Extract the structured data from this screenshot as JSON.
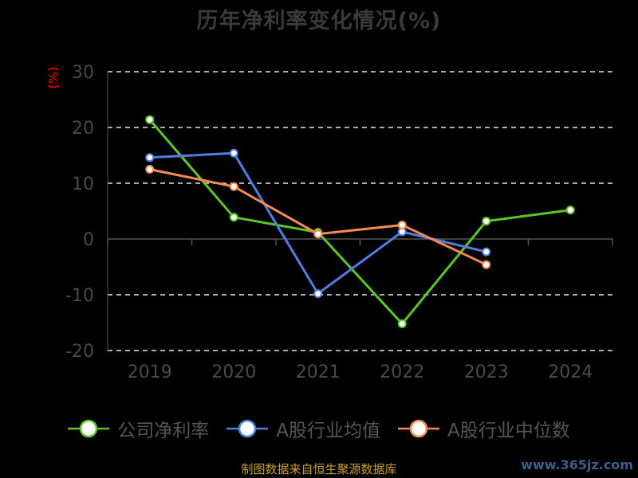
{
  "header": {
    "title": "历年净利率变化情况(%)",
    "unit": "(%)"
  },
  "footer": {
    "source": "制图数据来自恒生聚源数据库",
    "watermark": "www.365jz.com"
  },
  "chart_data": {
    "type": "line",
    "title": "历年净利率变化情况(%)",
    "ylabel": "(%)",
    "categories": [
      "2019",
      "2020",
      "2021",
      "2022",
      "2023",
      "2024"
    ],
    "ylim": [
      -20,
      30
    ],
    "yticks": [
      30,
      20,
      10,
      0,
      -10,
      -20
    ],
    "grid": true,
    "legend_position": "bottom",
    "series": [
      {
        "name": "公司净利率",
        "color": "#5cc826",
        "values": [
          21.4,
          3.9,
          1.2,
          -15.2,
          3.2,
          5.2
        ]
      },
      {
        "name": "A股行业均值",
        "color": "#4f7fe0",
        "values": [
          14.6,
          15.4,
          -9.8,
          1.3,
          -2.3,
          null
        ]
      },
      {
        "name": "A股行业中位数",
        "color": "#f98a52",
        "values": [
          12.5,
          9.4,
          0.9,
          2.5,
          -4.6,
          null
        ]
      }
    ]
  }
}
